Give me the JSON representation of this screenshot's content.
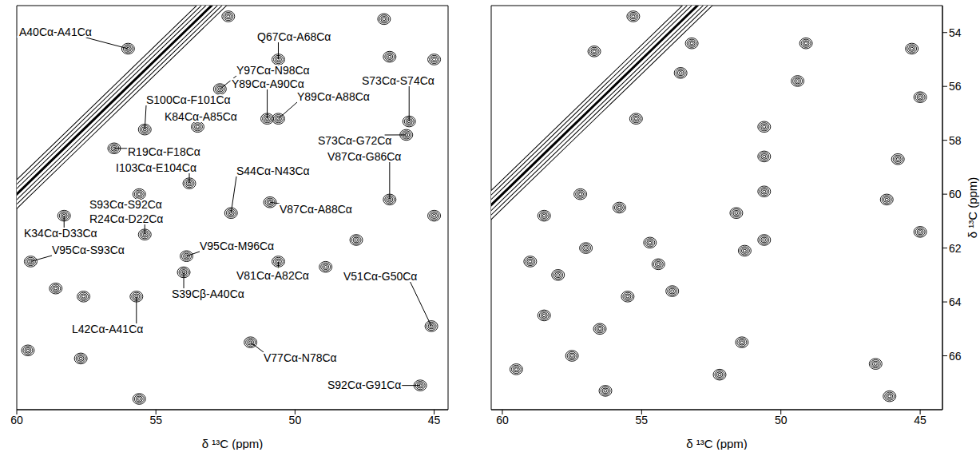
{
  "chart_data": [
    {
      "type": "scatter",
      "x_label": "δ ¹³C (ppm)",
      "xlim": [
        60,
        44.5
      ],
      "xticks": [
        60,
        55,
        50,
        45
      ],
      "ylim": [
        68,
        53
      ],
      "tick_labels": "x",
      "color": "#000000",
      "diagonal": {
        "x": [
          52.5,
          54,
          56,
          58,
          60,
          61.5
        ],
        "y": [
          52.5,
          54,
          56,
          58,
          60,
          61.5
        ]
      },
      "peaks": [
        {
          "x": 56.0,
          "y": 54.6,
          "label": "A40Cα-A41Cα"
        },
        {
          "x": 50.6,
          "y": 55.0,
          "label": "Q67Cα-A68Cα"
        },
        {
          "x": 52.7,
          "y": 56.1,
          "label": "Y97Cα-N98Cα"
        },
        {
          "x": 51.0,
          "y": 57.2,
          "label": "Y89Cα-A90Cα"
        },
        {
          "x": 55.4,
          "y": 57.6,
          "label": "S100Cα-F101Cα"
        },
        {
          "x": 50.6,
          "y": 57.2,
          "label": "Y89Cα-A88Cα"
        },
        {
          "x": 45.9,
          "y": 57.3,
          "label": "S73Cα-S74Cα"
        },
        {
          "x": 53.5,
          "y": 57.5,
          "label": "K84Cα-A85Cα"
        },
        {
          "x": 46.0,
          "y": 57.8,
          "label": "S73Cα-G72Cα"
        },
        {
          "x": 46.6,
          "y": 60.2,
          "label": "V87Cα-G86Cα"
        },
        {
          "x": 56.5,
          "y": 58.3,
          "label": "R19Cα-F18Cα"
        },
        {
          "x": 53.8,
          "y": 59.6,
          "label": "I103Cα-E104Cα"
        },
        {
          "x": 52.3,
          "y": 60.7,
          "label": "S44Cα-N43Cα"
        },
        {
          "x": 50.9,
          "y": 60.3,
          "label": "V87Cα-A88Cα"
        },
        {
          "x": 55.6,
          "y": 60.0,
          "label": "S93Cα-S92Cα"
        },
        {
          "x": 55.4,
          "y": 61.5,
          "label": "R24Cα-D22Cα"
        },
        {
          "x": 58.3,
          "y": 60.8,
          "label": "K34Cα-D33Cα"
        },
        {
          "x": 59.5,
          "y": 62.5,
          "label": "V95Cα-S93Cα"
        },
        {
          "x": 53.9,
          "y": 62.3,
          "label": "V95Cα-M96Cα"
        },
        {
          "x": 50.6,
          "y": 62.5,
          "label": "V81Cα-A82Cα"
        },
        {
          "x": 54.0,
          "y": 62.9,
          "label": "S39Cβ-A40Cα"
        },
        {
          "x": 45.1,
          "y": 64.9,
          "label": "V51Cα-G50Cα"
        },
        {
          "x": 55.7,
          "y": 63.8,
          "label": "L42Cα-A41Cα"
        },
        {
          "x": 51.6,
          "y": 65.5,
          "label": "V77Cα-N78Cα"
        },
        {
          "x": 45.5,
          "y": 67.1,
          "label": "S92Cα-G91Cα"
        },
        {
          "x": 48.9,
          "y": 62.7
        },
        {
          "x": 46.6,
          "y": 54.9
        },
        {
          "x": 45.0,
          "y": 60.8
        },
        {
          "x": 52.4,
          "y": 53.4
        },
        {
          "x": 46.8,
          "y": 53.5
        },
        {
          "x": 58.6,
          "y": 63.5
        },
        {
          "x": 57.6,
          "y": 63.8
        },
        {
          "x": 59.6,
          "y": 65.8
        },
        {
          "x": 57.7,
          "y": 66.1
        },
        {
          "x": 55.6,
          "y": 67.6
        },
        {
          "x": 47.8,
          "y": 61.7
        },
        {
          "x": 45.0,
          "y": 55.0
        }
      ]
    },
    {
      "type": "scatter",
      "x_label": "δ ¹³C (ppm)",
      "y_label": "δ ¹³C (ppm)",
      "xlim": [
        60.4,
        44.2
      ],
      "xticks": [
        60,
        55,
        50,
        45
      ],
      "ylim": [
        68,
        53
      ],
      "yticks": [
        54,
        56,
        58,
        60,
        62,
        64,
        66
      ],
      "color": "#000000",
      "diagonal": {
        "x": [
          52.5,
          54,
          56,
          58,
          60,
          62
        ],
        "y": [
          52.5,
          54,
          56,
          58,
          60,
          62
        ]
      },
      "peaks": [
        {
          "x": 55.2,
          "y": 57.2
        },
        {
          "x": 53.6,
          "y": 55.5
        },
        {
          "x": 53.2,
          "y": 54.4
        },
        {
          "x": 50.6,
          "y": 57.5
        },
        {
          "x": 50.6,
          "y": 59.9
        },
        {
          "x": 50.6,
          "y": 58.6
        },
        {
          "x": 46.2,
          "y": 60.2
        },
        {
          "x": 46.1,
          "y": 67.5
        },
        {
          "x": 51.6,
          "y": 60.7
        },
        {
          "x": 52.2,
          "y": 66.7
        },
        {
          "x": 50.6,
          "y": 61.7
        },
        {
          "x": 51.3,
          "y": 62.1
        },
        {
          "x": 53.9,
          "y": 63.6
        },
        {
          "x": 55.5,
          "y": 63.8
        },
        {
          "x": 54.4,
          "y": 62.6
        },
        {
          "x": 56.3,
          "y": 67.3
        },
        {
          "x": 51.4,
          "y": 65.5
        },
        {
          "x": 45.0,
          "y": 56.4
        },
        {
          "x": 45.3,
          "y": 54.6
        },
        {
          "x": 45.8,
          "y": 58.7
        },
        {
          "x": 45.0,
          "y": 61.4
        },
        {
          "x": 46.6,
          "y": 66.3
        },
        {
          "x": 59.0,
          "y": 62.5
        },
        {
          "x": 58.0,
          "y": 63.0
        },
        {
          "x": 57.0,
          "y": 62.0
        },
        {
          "x": 58.5,
          "y": 64.5
        },
        {
          "x": 56.5,
          "y": 65.0
        },
        {
          "x": 59.5,
          "y": 66.5
        },
        {
          "x": 57.5,
          "y": 66.0
        },
        {
          "x": 55.8,
          "y": 60.5
        },
        {
          "x": 57.2,
          "y": 60.0
        },
        {
          "x": 58.5,
          "y": 60.8
        },
        {
          "x": 54.7,
          "y": 61.8
        },
        {
          "x": 55.3,
          "y": 53.4
        },
        {
          "x": 56.7,
          "y": 54.7
        },
        {
          "x": 49.1,
          "y": 54.4
        },
        {
          "x": 49.4,
          "y": 55.8
        }
      ]
    }
  ]
}
